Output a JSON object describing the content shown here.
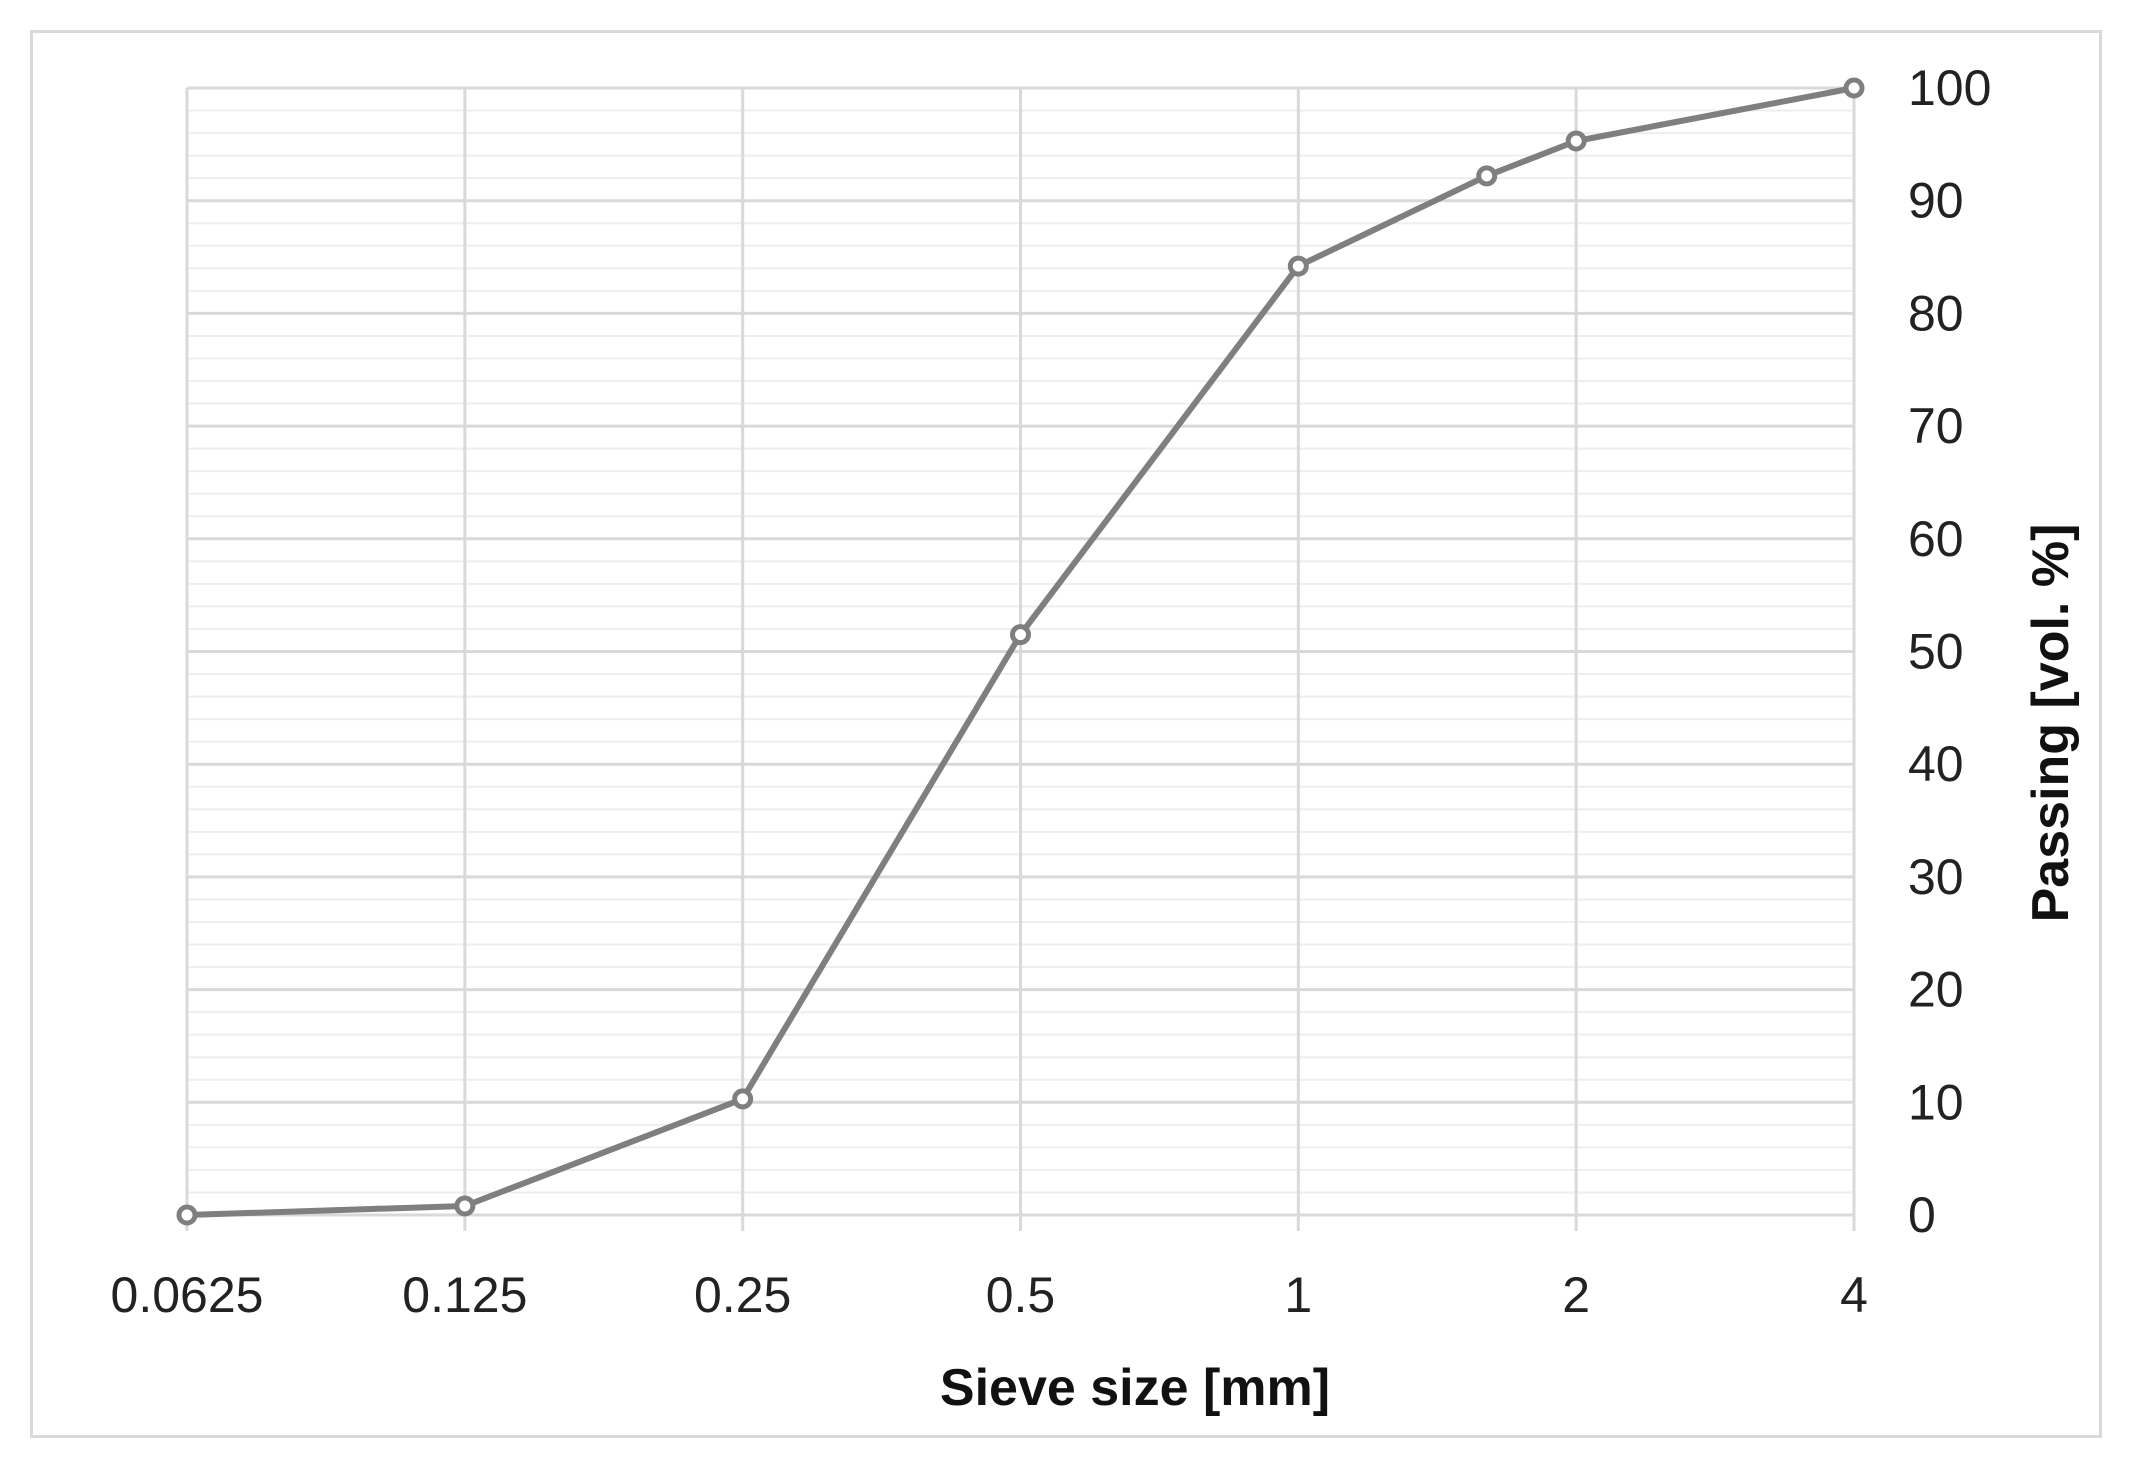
{
  "chart_data": {
    "type": "line",
    "title": "",
    "xlabel": "Sieve size [mm]",
    "ylabel": "Passing  [vol. %]",
    "x_scale": "log2",
    "x_ticks": [
      0.0625,
      0.125,
      0.25,
      0.5,
      1,
      2,
      4
    ],
    "x_tick_labels": [
      "0.0625",
      "0.125",
      "0.25",
      "0.5",
      "1",
      "2",
      "4"
    ],
    "xlim": [
      0.0625,
      4
    ],
    "y_ticks": [
      0,
      10,
      20,
      30,
      40,
      50,
      60,
      70,
      80,
      90,
      100
    ],
    "ylim": [
      0,
      100
    ],
    "y_axis_side": "right",
    "grid": {
      "major": true,
      "minor_y": true
    },
    "series": [
      {
        "x": [
          0.0625,
          0.125,
          0.25,
          0.5,
          1,
          1.6,
          2,
          4
        ],
        "y": [
          0,
          0.8,
          10.3,
          51.5,
          84.2,
          92.2,
          95.3,
          100
        ]
      }
    ],
    "colors": {
      "line": "#7f7f7f",
      "marker": "#7f7f7f",
      "grid_major": "#d9d9d9",
      "grid_minor": "#eeeeee",
      "frame": "#d9d9d9"
    }
  }
}
